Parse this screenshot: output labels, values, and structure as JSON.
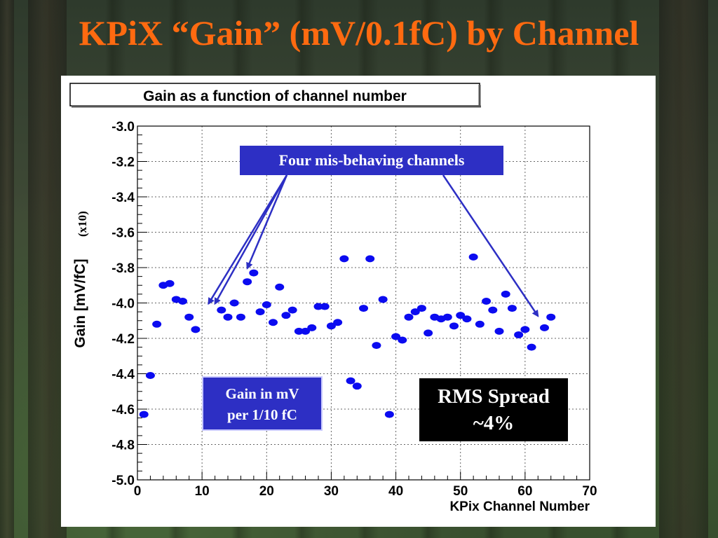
{
  "slide_title": "KPiX “Gain” (mV/0.1fC) by Channel",
  "colors": {
    "title": "#ff6a10",
    "markers": "#0b0bf0",
    "callout_blue": "#2d2fc4",
    "callout_black": "#000000"
  },
  "annotations": {
    "misbehaving": "Four mis-behaving channels",
    "gain_unit_line1": "Gain in mV",
    "gain_unit_line2": "per 1/10 fC",
    "rms_line1": "RMS Spread",
    "rms_line2": "~4%",
    "scale_note": "(x10)"
  },
  "chart_data": {
    "type": "scatter",
    "title": "Gain as a function of channel number",
    "xlabel": "KPix Channel Number",
    "ylabel": "Gain [mV/fC]",
    "xlim": [
      0,
      70
    ],
    "ylim": [
      -5.0,
      -3.0
    ],
    "grid": true,
    "xticks": [
      "0",
      "10",
      "20",
      "30",
      "40",
      "50",
      "60",
      "70"
    ],
    "yticks": [
      "-3.0",
      "-3.2",
      "-3.4",
      "-3.6",
      "-3.8",
      "-4.0",
      "-4.2",
      "-4.4",
      "-4.6",
      "-4.8",
      "-5.0"
    ],
    "points": [
      [
        1,
        -4.63
      ],
      [
        2,
        -4.41
      ],
      [
        3,
        -4.12
      ],
      [
        4,
        -3.9
      ],
      [
        5,
        -3.89
      ],
      [
        6,
        -3.98
      ],
      [
        7,
        -3.99
      ],
      [
        8,
        -4.08
      ],
      [
        9,
        -4.15
      ],
      [
        13,
        -4.04
      ],
      [
        14,
        -4.08
      ],
      [
        15,
        -4.0
      ],
      [
        16,
        -4.08
      ],
      [
        17,
        -3.88
      ],
      [
        18,
        -3.83
      ],
      [
        19,
        -4.05
      ],
      [
        20,
        -4.01
      ],
      [
        21,
        -4.11
      ],
      [
        22,
        -3.91
      ],
      [
        23,
        -4.07
      ],
      [
        24,
        -4.04
      ],
      [
        25,
        -4.16
      ],
      [
        26,
        -4.16
      ],
      [
        27,
        -4.14
      ],
      [
        28,
        -4.02
      ],
      [
        29,
        -4.02
      ],
      [
        30,
        -4.13
      ],
      [
        31,
        -4.11
      ],
      [
        32,
        -3.75
      ],
      [
        33,
        -4.44
      ],
      [
        34,
        -4.47
      ],
      [
        35,
        -4.03
      ],
      [
        36,
        -3.75
      ],
      [
        37,
        -4.24
      ],
      [
        38,
        -3.98
      ],
      [
        39,
        -4.63
      ],
      [
        40,
        -4.19
      ],
      [
        41,
        -4.21
      ],
      [
        42,
        -4.08
      ],
      [
        43,
        -4.05
      ],
      [
        44,
        -4.03
      ],
      [
        45,
        -4.17
      ],
      [
        46,
        -4.08
      ],
      [
        47,
        -4.09
      ],
      [
        48,
        -4.08
      ],
      [
        49,
        -4.13
      ],
      [
        50,
        -4.07
      ],
      [
        51,
        -4.09
      ],
      [
        52,
        -3.74
      ],
      [
        53,
        -4.12
      ],
      [
        54,
        -3.99
      ],
      [
        55,
        -4.04
      ],
      [
        56,
        -4.16
      ],
      [
        57,
        -3.95
      ],
      [
        58,
        -4.03
      ],
      [
        59,
        -4.18
      ],
      [
        60,
        -4.15
      ],
      [
        61,
        -4.25
      ],
      [
        63,
        -4.14
      ],
      [
        64,
        -4.08
      ]
    ],
    "arrow_targets": [
      [
        11,
        -4.02
      ],
      [
        12,
        -4.02
      ],
      [
        17,
        -3.82
      ],
      [
        62,
        -4.09
      ]
    ]
  }
}
